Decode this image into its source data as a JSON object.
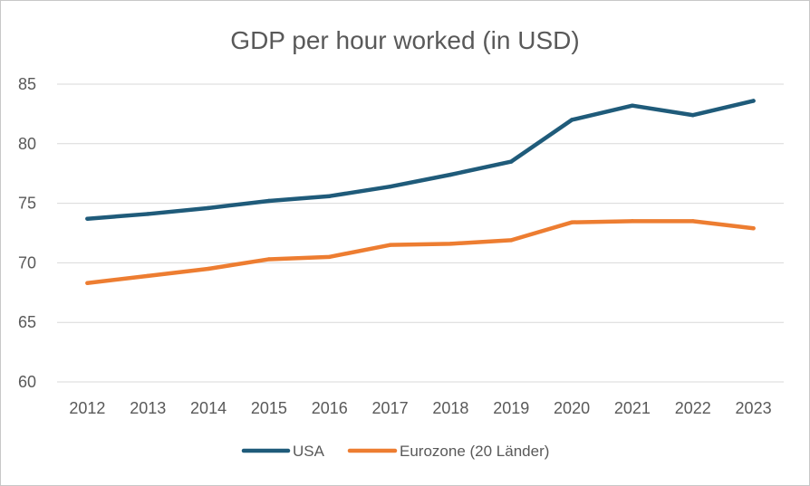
{
  "chart_data": {
    "type": "line",
    "title": "GDP per hour worked (in USD)",
    "xlabel": "",
    "ylabel": "",
    "categories": [
      "2012",
      "2013",
      "2014",
      "2015",
      "2016",
      "2017",
      "2018",
      "2019",
      "2020",
      "2021",
      "2022",
      "2023"
    ],
    "ylim": [
      60,
      85
    ],
    "yticks": [
      60,
      65,
      70,
      75,
      80,
      85
    ],
    "grid": true,
    "legend": "bottom",
    "series": [
      {
        "name": "USA",
        "color": "#1f5b7a",
        "values": [
          73.7,
          74.1,
          74.6,
          75.2,
          75.6,
          76.4,
          77.4,
          78.5,
          82.0,
          83.2,
          82.4,
          83.6
        ]
      },
      {
        "name": "Eurozone (20 Länder)",
        "color": "#ed7d31",
        "values": [
          68.3,
          68.9,
          69.5,
          70.3,
          70.5,
          71.5,
          71.6,
          71.9,
          73.4,
          73.5,
          73.5,
          72.9
        ]
      }
    ]
  }
}
